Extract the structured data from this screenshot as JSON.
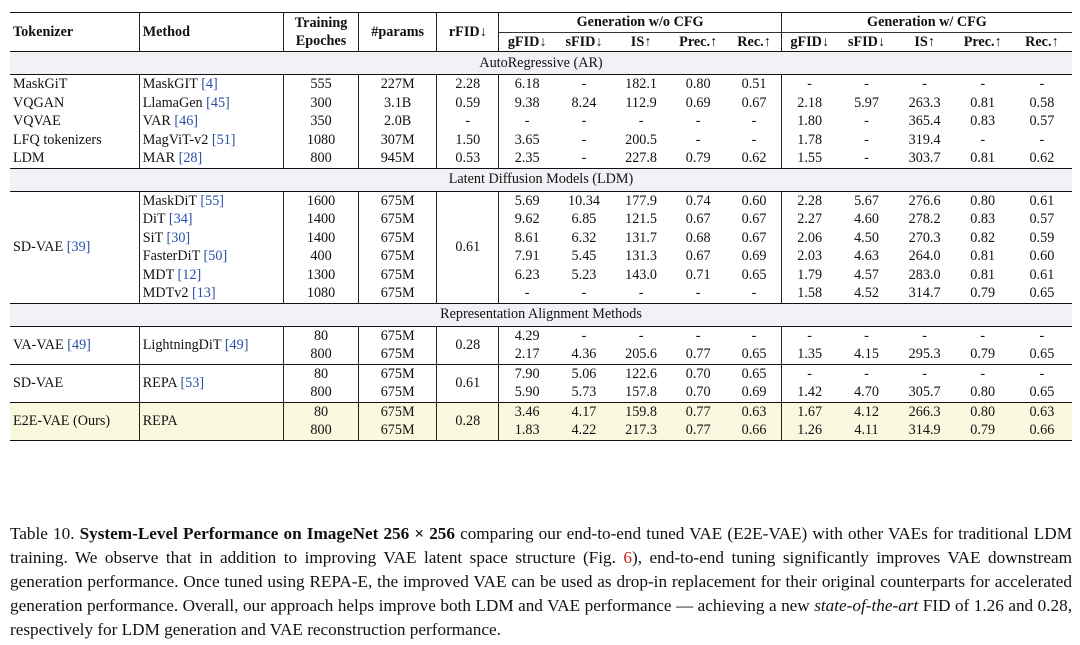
{
  "header": {
    "tokenizer": "Tokenizer",
    "method": "Method",
    "training_epochs": [
      "Training",
      "Epoches"
    ],
    "params": "#params",
    "rfid": "rFID↓",
    "group_no_cfg": "Generation w/o CFG",
    "group_cfg": "Generation w/ CFG",
    "metrics": [
      "gFID↓",
      "sFID↓",
      "IS↑",
      "Prec.↑",
      "Rec.↑"
    ]
  },
  "sections": {
    "ar": "AutoRegressive (AR)",
    "ldm": "Latent Diffusion Models (LDM)",
    "repa": "Representation Alignment Methods"
  },
  "ar_rows": [
    {
      "tok": "MaskGiT",
      "method": "MaskGIT",
      "cite": "[4]",
      "ep": "555",
      "params": "227M",
      "rfid": "2.28",
      "n": [
        "6.18",
        "-",
        "182.1",
        "0.80",
        "0.51"
      ],
      "c": [
        "-",
        "-",
        "-",
        "-",
        "-"
      ]
    },
    {
      "tok": "VQGAN",
      "method": "LlamaGen",
      "cite": "[45]",
      "ep": "300",
      "params": "3.1B",
      "rfid": "0.59",
      "n": [
        "9.38",
        "8.24",
        "112.9",
        "0.69",
        "0.67"
      ],
      "c": [
        "2.18",
        "5.97",
        "263.3",
        "0.81",
        "0.58"
      ]
    },
    {
      "tok": "VQVAE",
      "method": "VAR",
      "cite": "[46]",
      "ep": "350",
      "params": "2.0B",
      "rfid": "-",
      "n": [
        "-",
        "-",
        "-",
        "-",
        "-"
      ],
      "c": [
        "1.80",
        "-",
        "365.4",
        "0.83",
        "0.57"
      ]
    },
    {
      "tok": "LFQ tokenizers",
      "method": "MagViT-v2",
      "cite": "[51]",
      "ep": "1080",
      "params": "307M",
      "rfid": "1.50",
      "n": [
        "3.65",
        "-",
        "200.5",
        "-",
        "-"
      ],
      "c": [
        "1.78",
        "-",
        "319.4",
        "-",
        "-"
      ]
    },
    {
      "tok": "LDM",
      "method": "MAR",
      "cite": "[28]",
      "ep": "800",
      "params": "945M",
      "rfid": "0.53",
      "n": [
        "2.35",
        "-",
        "227.8",
        "0.79",
        "0.62"
      ],
      "c": [
        "1.55",
        "-",
        "303.7",
        "0.81",
        "0.62"
      ]
    }
  ],
  "ldm_tok": {
    "name": "SD-VAE",
    "cite": "[39]",
    "rfid": "0.61"
  },
  "ldm_rows": [
    {
      "method": "MaskDiT",
      "cite": "[55]",
      "ep": "1600",
      "params": "675M",
      "n": [
        "5.69",
        "10.34",
        "177.9",
        "0.74",
        "0.60"
      ],
      "c": [
        "2.28",
        "5.67",
        "276.6",
        "0.80",
        "0.61"
      ]
    },
    {
      "method": "DiT",
      "cite": "[34]",
      "ep": "1400",
      "params": "675M",
      "n": [
        "9.62",
        "6.85",
        "121.5",
        "0.67",
        "0.67"
      ],
      "c": [
        "2.27",
        "4.60",
        "278.2",
        "0.83",
        "0.57"
      ]
    },
    {
      "method": "SiT",
      "cite": "[30]",
      "ep": "1400",
      "params": "675M",
      "n": [
        "8.61",
        "6.32",
        "131.7",
        "0.68",
        "0.67"
      ],
      "c": [
        "2.06",
        "4.50",
        "270.3",
        "0.82",
        "0.59"
      ]
    },
    {
      "method": "FasterDiT",
      "cite": "[50]",
      "ep": "400",
      "params": "675M",
      "n": [
        "7.91",
        "5.45",
        "131.3",
        "0.67",
        "0.69"
      ],
      "c": [
        "2.03",
        "4.63",
        "264.0",
        "0.81",
        "0.60"
      ]
    },
    {
      "method": "MDT",
      "cite": "[12]",
      "ep": "1300",
      "params": "675M",
      "n": [
        "6.23",
        "5.23",
        "143.0",
        "0.71",
        "0.65"
      ],
      "c": [
        "1.79",
        "4.57",
        "283.0",
        "0.81",
        "0.61"
      ]
    },
    {
      "method": "MDTv2",
      "cite": "[13]",
      "ep": "1080",
      "params": "675M",
      "n": [
        "-",
        "-",
        "-",
        "-",
        "-"
      ],
      "c": [
        "1.58",
        "4.52",
        "314.7",
        "0.79",
        "0.65"
      ]
    }
  ],
  "repa_groups": [
    {
      "tok": "VA-VAE",
      "tokcite": "[49]",
      "method": "LightningDiT",
      "cite": "[49]",
      "rfid": "0.28",
      "rows": [
        {
          "ep": "80",
          "params": "675M",
          "n": [
            "4.29",
            "-",
            "-",
            "-",
            "-"
          ],
          "c": [
            "-",
            "-",
            "-",
            "-",
            "-"
          ]
        },
        {
          "ep": "800",
          "params": "675M",
          "n": [
            "2.17",
            "4.36",
            "205.6",
            "0.77",
            "0.65"
          ],
          "c": [
            "1.35",
            "4.15",
            "295.3",
            "0.79",
            "0.65"
          ]
        }
      ]
    },
    {
      "tok": "SD-VAE",
      "tokcite": "",
      "method": "REPA",
      "cite": "[53]",
      "rfid": "0.61",
      "rows": [
        {
          "ep": "80",
          "params": "675M",
          "n": [
            "7.90",
            "5.06",
            "122.6",
            "0.70",
            "0.65"
          ],
          "c": [
            "-",
            "-",
            "-",
            "-",
            "-"
          ]
        },
        {
          "ep": "800",
          "params": "675M",
          "n": [
            "5.90",
            "5.73",
            "157.8",
            "0.70",
            "0.69"
          ],
          "c": [
            "1.42",
            "4.70",
            "305.7",
            "0.80",
            "0.65"
          ]
        }
      ]
    },
    {
      "tok": "E2E-VAE (Ours)",
      "tokcite": "",
      "method": "REPA",
      "cite": "",
      "rfid": "0.28",
      "rows": [
        {
          "ep": "80",
          "params": "675M",
          "n": [
            "3.46",
            "4.17",
            "159.8",
            "0.77",
            "0.63"
          ],
          "c": [
            "1.67",
            "4.12",
            "266.3",
            "0.80",
            "0.63"
          ]
        },
        {
          "ep": "800",
          "params": "675M",
          "n": [
            "1.83",
            "4.22",
            "217.3",
            "0.77",
            "0.66"
          ],
          "c": [
            "1.26",
            "4.11",
            "314.9",
            "0.79",
            "0.66"
          ]
        }
      ]
    }
  ],
  "caption": {
    "label": "Table 10.",
    "bold": "System-Level Performance on ImageNet 256 × 256",
    "t1": "comparing our end-to-end tuned VAE (E2E-VAE) with other VAEs for traditional LDM training. We observe that in addition to improving VAE latent space structure (Fig.",
    "fig_ref": "6",
    "t2": "), end-to-end tuning significantly improves VAE downstream generation performance. Once tuned using REPA-E, the improved VAE can be used as drop-in replacement for their original counterparts for accelerated generation performance. Overall, our approach helps improve both LDM and VAE performance — achieving a new",
    "italic": "state-of-the-art",
    "t3": "FID of 1.26 and 0.28, respectively for LDM generation and VAE reconstruction performance."
  }
}
